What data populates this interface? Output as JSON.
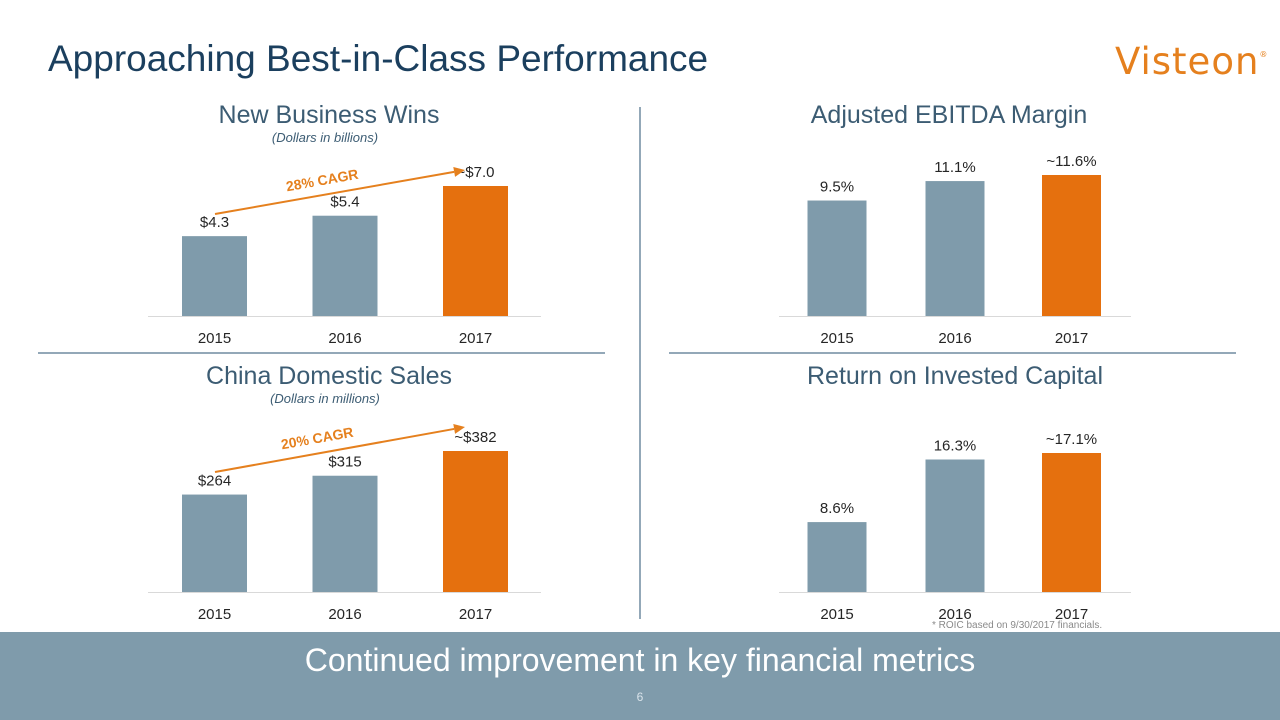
{
  "page": {
    "title": "Approaching Best-in-Class Performance",
    "logo_text": "Visteon",
    "logo_mark": "®",
    "footnote": "* ROIC based on 9/30/2017 financials.",
    "banner": "Continued improvement in key financial metrics",
    "page_number": "6"
  },
  "colors": {
    "historic_bar": "#7f9bab",
    "target_bar": "#e5700e",
    "title": "#1b3f5e",
    "accent": "#e5801e"
  },
  "charts": [
    {
      "title": "New Business Wins",
      "subtitle": "(Dollars in billions)"
    },
    {
      "title": "Adjusted EBITDA Margin",
      "subtitle": ""
    },
    {
      "title": "China Domestic Sales",
      "subtitle": "(Dollars in millions)"
    },
    {
      "title": "Return on Invested Capital",
      "subtitle": ""
    }
  ],
  "chart_data": [
    {
      "type": "bar",
      "title": "New Business Wins",
      "subtitle": "(Dollars in billions)",
      "categories": [
        "2015",
        "2016",
        "2017"
      ],
      "values": [
        4.3,
        5.4,
        7.0
      ],
      "labels": [
        "$4.3",
        "$5.4",
        "~$7.0"
      ],
      "highlight_index": 2,
      "annotation": "28% CAGR",
      "ylim": [
        0,
        7.0
      ]
    },
    {
      "type": "bar",
      "title": "Adjusted EBITDA Margin",
      "categories": [
        "2015",
        "2016",
        "2017"
      ],
      "values": [
        9.5,
        11.1,
        11.6
      ],
      "labels": [
        "9.5%",
        "11.1%",
        "~11.6%"
      ],
      "highlight_index": 2,
      "ylim": [
        0,
        11.6
      ]
    },
    {
      "type": "bar",
      "title": "China Domestic Sales",
      "subtitle": "(Dollars in millions)",
      "categories": [
        "2015",
        "2016",
        "2017"
      ],
      "values": [
        264,
        315,
        382
      ],
      "labels": [
        "$264",
        "$315",
        "~$382"
      ],
      "highlight_index": 2,
      "annotation": "20% CAGR",
      "ylim": [
        0,
        382
      ]
    },
    {
      "type": "bar",
      "title": "Return on Invested Capital",
      "categories": [
        "2015",
        "2016",
        "2017"
      ],
      "values": [
        8.6,
        16.3,
        17.1
      ],
      "labels": [
        "8.6%",
        "16.3%",
        "~17.1%"
      ],
      "highlight_index": 2,
      "ylim": [
        0,
        17.1
      ]
    }
  ]
}
